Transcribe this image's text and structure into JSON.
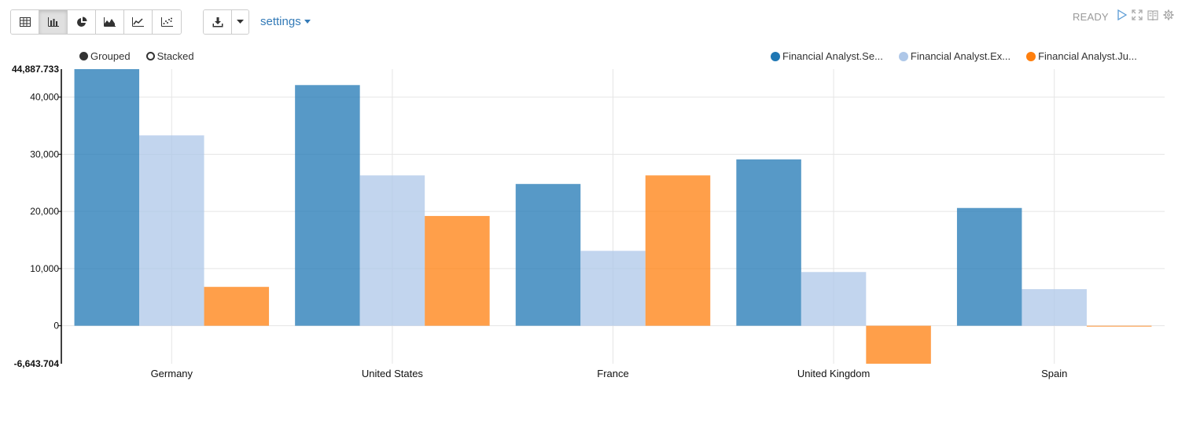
{
  "toolbar": {
    "view_buttons": [
      {
        "name": "table-view-button",
        "icon": "table-icon",
        "active": false
      },
      {
        "name": "bar-chart-button",
        "icon": "bar-chart-icon",
        "active": true
      },
      {
        "name": "pie-chart-button",
        "icon": "pie-chart-icon",
        "active": false
      },
      {
        "name": "area-chart-button",
        "icon": "area-chart-icon",
        "active": false
      },
      {
        "name": "line-chart-button",
        "icon": "line-chart-icon",
        "active": false
      },
      {
        "name": "scatter-chart-button",
        "icon": "scatter-chart-icon",
        "active": false
      }
    ],
    "download_icon": "download-icon",
    "settings_label": "settings"
  },
  "status": {
    "text": "READY",
    "icons": [
      "play-icon",
      "expand-icon",
      "book-icon",
      "gear-icon"
    ]
  },
  "modes": {
    "grouped_label": "Grouped",
    "stacked_label": "Stacked",
    "selected": "grouped"
  },
  "chart_data": {
    "type": "bar",
    "categories": [
      "Germany",
      "United States",
      "France",
      "United Kingdom",
      "Spain"
    ],
    "series": [
      {
        "name": "Financial Analyst.Se...",
        "color": "#1f77b4",
        "values": [
          44887.733,
          42100,
          24800,
          29100,
          20600
        ]
      },
      {
        "name": "Financial Analyst.Ex...",
        "color": "#aec7e8",
        "values": [
          33300,
          26300,
          13100,
          9400,
          6400
        ]
      },
      {
        "name": "Financial Analyst.Ju...",
        "color": "#ff7f0e",
        "values": [
          6800,
          19200,
          26300,
          -6643.704,
          -150
        ]
      }
    ],
    "ylim": [
      -6643.704,
      44887.733
    ],
    "y_ticks": [
      "0",
      "10,000",
      "20,000",
      "30,000",
      "40,000"
    ],
    "y_max_label": "44,887.733",
    "y_min_label": "-6,643.704",
    "legend_position": "top-right",
    "grid": true,
    "stacked": false
  }
}
